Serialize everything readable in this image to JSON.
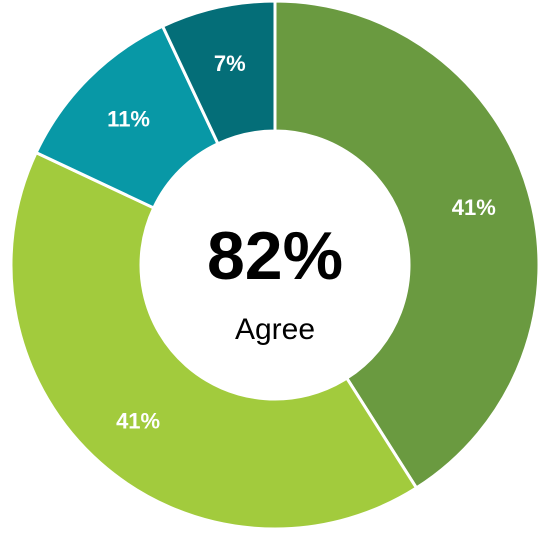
{
  "chart_data": {
    "type": "pie",
    "variant": "donut",
    "title": "",
    "center_value": "82%",
    "center_caption": "Agree",
    "slices": [
      {
        "label": "41%",
        "value": 41,
        "color": "#6a9a40"
      },
      {
        "label": "41%",
        "value": 41,
        "color": "#a2cb3d"
      },
      {
        "label": "11%",
        "value": 11,
        "color": "#0898a6"
      },
      {
        "label": "7%",
        "value": 7,
        "color": "#046e78"
      }
    ],
    "start": "12 o'clock",
    "direction": "clockwise",
    "separator_color": "#ffffff"
  }
}
